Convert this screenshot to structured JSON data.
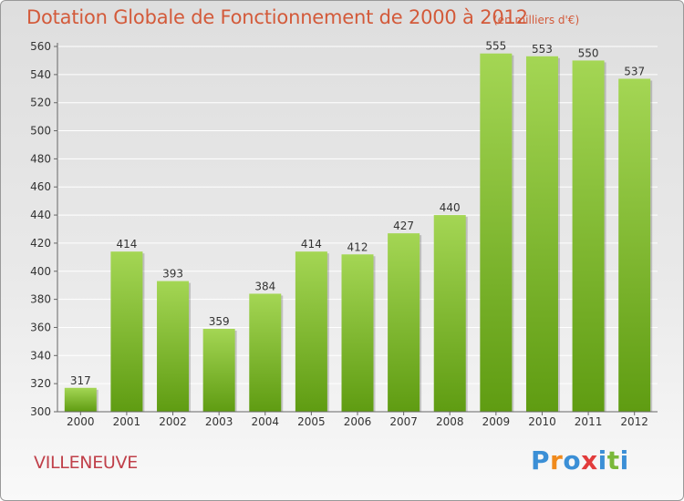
{
  "title": "Dotation Globale de Fonctionnement de 2000 à 2012",
  "subtitle": "(en milliers d'€)",
  "city": "VILLENEUVE",
  "logo": {
    "letters": [
      "P",
      "r",
      "o",
      "x",
      "i",
      "t",
      "i"
    ],
    "colors": [
      "#3b8fd6",
      "#f08a1c",
      "#3b8fd6",
      "#e23c3c",
      "#3b8fd6",
      "#7ab83a",
      "#3b8fd6"
    ]
  },
  "colors": {
    "bar_top": "#a4d654",
    "bar_bottom": "#5f9c12",
    "grid": "#ffffff",
    "axis": "#666666"
  },
  "chart_data": {
    "type": "bar",
    "categories": [
      "2000",
      "2001",
      "2002",
      "2003",
      "2004",
      "2005",
      "2006",
      "2007",
      "2008",
      "2009",
      "2010",
      "2011",
      "2012"
    ],
    "values": [
      317,
      414,
      393,
      359,
      384,
      414,
      412,
      427,
      440,
      555,
      553,
      550,
      537
    ],
    "ylim": [
      300,
      560
    ],
    "yticks": [
      300,
      320,
      340,
      360,
      380,
      400,
      420,
      440,
      460,
      480,
      500,
      520,
      540,
      560
    ],
    "grid": true,
    "xlabel": "",
    "ylabel": ""
  }
}
